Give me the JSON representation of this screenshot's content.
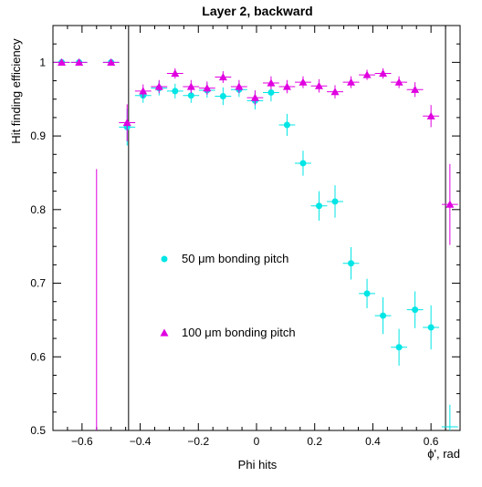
{
  "chart_data": {
    "type": "scatter",
    "title": "Layer 2, backward",
    "xlabel": "Phi hits",
    "xlabel_right": "ϕ', rad",
    "ylabel": "Hit finding efficiency",
    "xlim": [
      -0.7,
      0.7
    ],
    "ylim": [
      0.5,
      1.05
    ],
    "x_ticks": [
      -0.6,
      -0.4,
      -0.2,
      0,
      0.2,
      0.4,
      0.6
    ],
    "x_tick_labels": [
      "−0.6",
      "−0.4",
      "−0.2",
      "0",
      "0.2",
      "0.4",
      "0.6"
    ],
    "y_ticks": [
      0.5,
      0.6,
      0.7,
      0.8,
      0.9,
      1
    ],
    "y_tick_labels": [
      "0.5",
      "0.6",
      "0.7",
      "0.8",
      "0.9",
      "1"
    ],
    "vertical_lines_x": [
      -0.44,
      0.65
    ],
    "grid": false,
    "legend": [
      {
        "label": "50 μm bonding pitch",
        "marker": "circle",
        "color": "#00e5e5"
      },
      {
        "label": "100 μm bonding pitch",
        "marker": "triangle",
        "color": "#e000e0"
      }
    ],
    "series": [
      {
        "name": "50 μm bonding pitch",
        "marker": "circle",
        "color": "#00e5e5",
        "x_err": 0.028,
        "points": [
          {
            "x": -0.67,
            "y": 1.0,
            "e": 0.001
          },
          {
            "x": -0.61,
            "y": 1.0,
            "e": 0.001
          },
          {
            "x": -0.5,
            "y": 1.0,
            "e": 0.001
          },
          {
            "x": -0.445,
            "y": 0.912,
            "e": 0.025
          },
          {
            "x": -0.39,
            "y": 0.955,
            "e": 0.01
          },
          {
            "x": -0.335,
            "y": 0.965,
            "e": 0.01
          },
          {
            "x": -0.28,
            "y": 0.961,
            "e": 0.01
          },
          {
            "x": -0.225,
            "y": 0.955,
            "e": 0.01
          },
          {
            "x": -0.17,
            "y": 0.962,
            "e": 0.01
          },
          {
            "x": -0.115,
            "y": 0.954,
            "e": 0.012
          },
          {
            "x": -0.06,
            "y": 0.963,
            "e": 0.01
          },
          {
            "x": -0.005,
            "y": 0.948,
            "e": 0.012
          },
          {
            "x": 0.05,
            "y": 0.959,
            "e": 0.012
          },
          {
            "x": 0.105,
            "y": 0.915,
            "e": 0.015
          },
          {
            "x": 0.16,
            "y": 0.863,
            "e": 0.017
          },
          {
            "x": 0.215,
            "y": 0.805,
            "e": 0.02
          },
          {
            "x": 0.27,
            "y": 0.811,
            "e": 0.022
          },
          {
            "x": 0.325,
            "y": 0.727,
            "e": 0.022
          },
          {
            "x": 0.38,
            "y": 0.686,
            "e": 0.02
          },
          {
            "x": 0.435,
            "y": 0.656,
            "e": 0.025
          },
          {
            "x": 0.49,
            "y": 0.613,
            "e": 0.025
          },
          {
            "x": 0.545,
            "y": 0.664,
            "e": 0.025
          },
          {
            "x": 0.6,
            "y": 0.64,
            "e": 0.03
          },
          {
            "x": 0.665,
            "y": 0.505,
            "e": 0.03
          }
        ]
      },
      {
        "name": "100 μm bonding pitch",
        "marker": "triangle",
        "color": "#e000e0",
        "x_err": 0.028,
        "points": [
          {
            "x": -0.67,
            "y": 1.0,
            "e": 0.001
          },
          {
            "x": -0.61,
            "y": 1.0,
            "e": 0.001
          },
          {
            "x": -0.5,
            "y": 1.0,
            "e": 0.001
          },
          {
            "x": -0.445,
            "y": 0.918,
            "e": 0.025
          },
          {
            "x": -0.39,
            "y": 0.961,
            "e": 0.009
          },
          {
            "x": -0.335,
            "y": 0.967,
            "e": 0.009
          },
          {
            "x": -0.28,
            "y": 0.985,
            "e": 0.007
          },
          {
            "x": -0.225,
            "y": 0.967,
            "e": 0.009
          },
          {
            "x": -0.17,
            "y": 0.965,
            "e": 0.009
          },
          {
            "x": -0.115,
            "y": 0.98,
            "e": 0.008
          },
          {
            "x": -0.06,
            "y": 0.967,
            "e": 0.009
          },
          {
            "x": -0.005,
            "y": 0.952,
            "e": 0.01
          },
          {
            "x": 0.05,
            "y": 0.972,
            "e": 0.009
          },
          {
            "x": 0.105,
            "y": 0.967,
            "e": 0.009
          },
          {
            "x": 0.16,
            "y": 0.973,
            "e": 0.008
          },
          {
            "x": 0.215,
            "y": 0.968,
            "e": 0.009
          },
          {
            "x": 0.27,
            "y": 0.96,
            "e": 0.009
          },
          {
            "x": 0.325,
            "y": 0.973,
            "e": 0.008
          },
          {
            "x": 0.38,
            "y": 0.983,
            "e": 0.007
          },
          {
            "x": 0.435,
            "y": 0.985,
            "e": 0.007
          },
          {
            "x": 0.49,
            "y": 0.973,
            "e": 0.008
          },
          {
            "x": 0.545,
            "y": 0.963,
            "e": 0.01
          },
          {
            "x": 0.6,
            "y": 0.927,
            "e": 0.015
          },
          {
            "x": 0.665,
            "y": 0.807,
            "e": 0.055
          }
        ],
        "extra_error_bars": [
          {
            "x": -0.55,
            "y_low": 0.5,
            "y_high": 0.855
          }
        ]
      }
    ]
  }
}
